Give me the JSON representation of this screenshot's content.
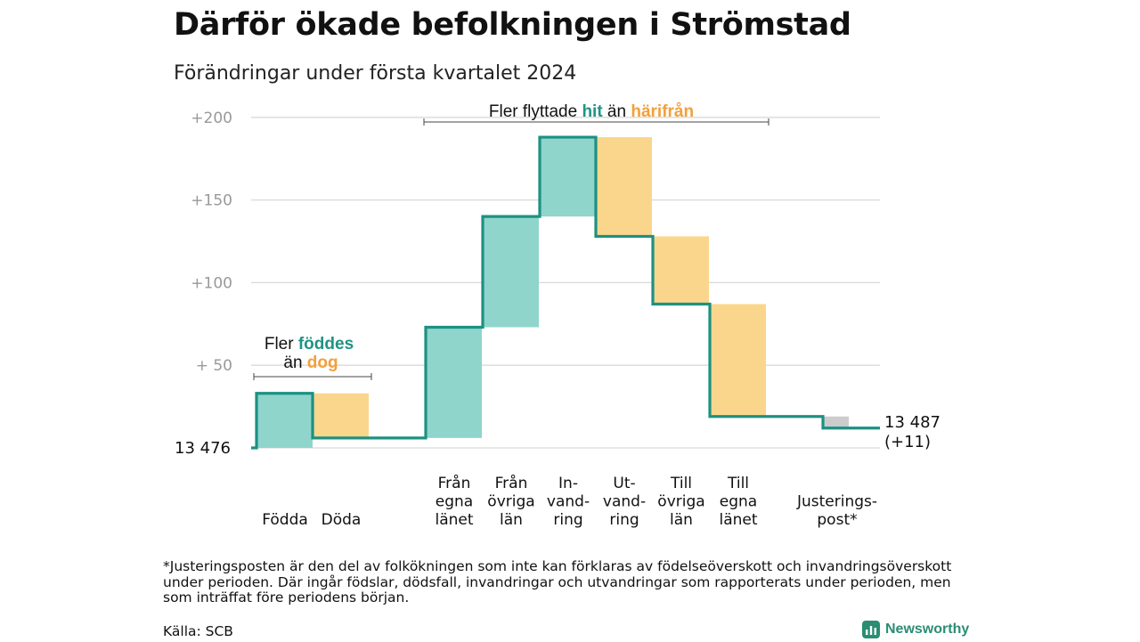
{
  "title": "Därför ökade befolkningen i Strömstad",
  "subtitle": "Förändringar under första kvartalet 2024",
  "chart_data": {
    "type": "waterfall",
    "start_label": "13  476",
    "start_value": 0,
    "end_label_value": "13 487",
    "end_label_change": "(+11)",
    "y_ticks": [
      "+200",
      "+150",
      "+100",
      "+  50"
    ],
    "y_tick_values": [
      200,
      150,
      100,
      50
    ],
    "ylim": [
      0,
      200
    ],
    "grid": true,
    "steps": [
      {
        "label": [
          "Födda"
        ],
        "delta": 33,
        "kind": "in"
      },
      {
        "label": [
          "Döda"
        ],
        "delta": -27,
        "kind": "out"
      },
      {
        "label": [
          "Från",
          "egna",
          "länet"
        ],
        "delta": 67,
        "kind": "in"
      },
      {
        "label": [
          "Från",
          "övriga",
          "län"
        ],
        "delta": 67,
        "kind": "in"
      },
      {
        "label": [
          "In-",
          "vand-",
          "ring"
        ],
        "delta": 48,
        "kind": "in"
      },
      {
        "label": [
          "Ut-",
          "vand-",
          "ring"
        ],
        "delta": -60,
        "kind": "out"
      },
      {
        "label": [
          "Till",
          "övriga",
          "län"
        ],
        "delta": -41,
        "kind": "out"
      },
      {
        "label": [
          "Till",
          "egna",
          "länet"
        ],
        "delta": -68,
        "kind": "out"
      },
      {
        "label": [
          "Justerings-",
          "post*"
        ],
        "delta": -7,
        "kind": "adjustment"
      }
    ],
    "annotations": [
      {
        "parts": [
          {
            "text": "Fler ",
            "kind": "plain"
          },
          {
            "text": "föddes",
            "kind": "in"
          }
        ],
        "parts2": [
          {
            "text": "än ",
            "kind": "plain"
          },
          {
            "text": "dog",
            "kind": "out"
          }
        ]
      },
      {
        "parts": [
          {
            "text": "Fler flyttade ",
            "kind": "plain"
          },
          {
            "text": "hit",
            "kind": "in"
          },
          {
            "text": " än ",
            "kind": "plain"
          },
          {
            "text": "härifrån",
            "kind": "out"
          }
        ]
      }
    ],
    "colors": {
      "in_fill": "#8fd5cc",
      "out_fill": "#fad68c",
      "adjustment_fill": "#cccccc",
      "line": "#1c9182",
      "in_text": "#1f9484",
      "out_text": "#f2a03a",
      "grid": "#d9d9d9",
      "tick_text": "#999999"
    }
  },
  "footnote": "*Justeringsposten är den del av folkökningen som inte kan förklaras av födelseöverskott och invandringsöverskott under perioden. Där ingår födslar, dödsfall, invandringar och utvandringar som rapporterats under perioden, men som inträffat före periodens början.",
  "source": "Källa: SCB",
  "brand": "Newsworthy"
}
